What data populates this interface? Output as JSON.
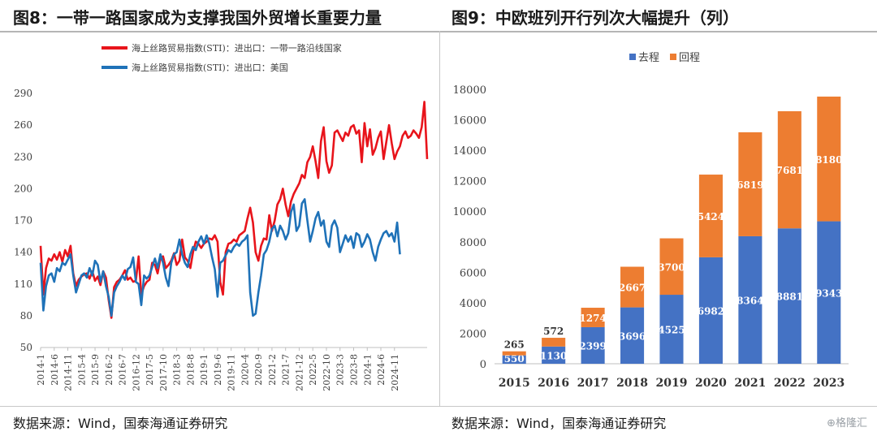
{
  "titles": {
    "left": "图8：一带一路国家成为支撑我国外贸增长重要力量",
    "right": "图9：中欧班列开行列次大幅提升（列）"
  },
  "sources": {
    "left": "数据来源：Wind，国泰海通证券研究",
    "right": "数据来源：Wind，国泰海通证券研究"
  },
  "watermark": "⊕格隆汇",
  "chart_data": [
    {
      "type": "line",
      "title": "",
      "legend_position": "top",
      "ylim": [
        50,
        290
      ],
      "yticks": [
        50,
        80,
        110,
        140,
        170,
        200,
        230,
        260,
        290
      ],
      "xticks": [
        "2014-1",
        "2014-6",
        "2014-11",
        "2015-4",
        "2015-9",
        "2016-2",
        "2016-7",
        "2016-12",
        "2017-5",
        "2017-10",
        "2018-3",
        "2018-8",
        "2019-1",
        "2019-6",
        "2019-11",
        "2020-4",
        "2020-9",
        "2021-2",
        "2021-7",
        "2021-12",
        "2022-5",
        "2022-10",
        "2023-3",
        "2023-8",
        "2024-1",
        "2024-6",
        "2024-11"
      ],
      "x_start": "2014-1",
      "series": [
        {
          "name": "海上丝路贸易指数(STI)：进出口：一带一路沿线国家",
          "color": "#e8141b",
          "values": [
            146,
            100,
            125,
            134,
            132,
            138,
            133,
            140,
            131,
            142,
            136,
            146,
            120,
            108,
            114,
            117,
            119,
            120,
            115,
            122,
            113,
            117,
            109,
            122,
            116,
            95,
            78,
            107,
            112,
            114,
            118,
            123,
            114,
            116,
            112,
            113,
            136,
            100,
            108,
            112,
            114,
            130,
            128,
            120,
            134,
            136,
            125,
            128,
            132,
            139,
            128,
            132,
            152,
            135,
            132,
            125,
            140,
            150,
            148,
            144,
            148,
            150,
            153,
            152,
            156,
            150,
            112,
            100,
            140,
            148,
            149,
            152,
            150,
            156,
            158,
            160,
            172,
            182,
            168,
            140,
            132,
            146,
            153,
            152,
            175,
            160,
            170,
            185,
            190,
            200,
            185,
            174,
            188,
            195,
            200,
            205,
            213,
            210,
            225,
            230,
            240,
            226,
            210,
            245,
            258,
            226,
            215,
            222,
            253,
            255,
            250,
            245,
            253,
            250,
            258,
            260,
            252,
            255,
            225,
            262,
            240,
            256,
            232,
            238,
            248,
            254,
            228,
            244,
            260,
            243,
            228,
            235,
            240,
            250,
            254,
            248,
            250,
            255,
            252,
            248,
            258,
            282,
            228
          ]
        },
        {
          "name": "海上丝路贸易指数(STI)：进出口：美国",
          "color": "#1f72b8",
          "values": [
            130,
            85,
            108,
            118,
            120,
            112,
            125,
            122,
            130,
            128,
            133,
            138,
            118,
            102,
            110,
            118,
            120,
            116,
            125,
            118,
            132,
            128,
            112,
            122,
            108,
            98,
            80,
            102,
            108,
            112,
            118,
            114,
            124,
            126,
            135,
            112,
            110,
            90,
            118,
            115,
            118,
            126,
            134,
            125,
            138,
            130,
            116,
            108,
            130,
            138,
            140,
            152,
            138,
            130,
            126,
            138,
            145,
            142,
            150,
            155,
            148,
            156,
            148,
            135,
            124,
            98,
            130,
            132,
            137,
            142,
            140,
            145,
            148,
            146,
            150,
            152,
            156,
            102,
            80,
            82,
            102,
            118,
            138,
            142,
            150,
            162,
            165,
            155,
            165,
            160,
            152,
            158,
            178,
            185,
            160,
            165,
            186,
            190,
            170,
            150,
            160,
            172,
            178,
            165,
            170,
            150,
            145,
            165,
            170,
            163,
            140,
            148,
            156,
            150,
            155,
            144,
            158,
            156,
            145,
            150,
            157,
            152,
            140,
            132,
            145,
            152,
            158,
            160,
            155,
            158,
            150,
            168,
            138
          ]
        }
      ]
    },
    {
      "type": "bar",
      "stacked": true,
      "title": "",
      "legend_position": "top",
      "categories": [
        "2015",
        "2016",
        "2017",
        "2018",
        "2019",
        "2020",
        "2021",
        "2022",
        "2023"
      ],
      "ylim": [
        0,
        18000
      ],
      "yticks": [
        0,
        2000,
        4000,
        6000,
        8000,
        10000,
        12000,
        14000,
        16000,
        18000
      ],
      "series": [
        {
          "name": "去程",
          "color": "#4472c4",
          "values": [
            550,
            1130,
            2399,
            3696,
            4525,
            6982,
            8364,
            8881,
            9343
          ]
        },
        {
          "name": "回程",
          "color": "#ed7d31",
          "values": [
            265,
            572,
            1274,
            2667,
            3700,
            5424,
            6819,
            7681,
            8180
          ]
        }
      ]
    }
  ]
}
